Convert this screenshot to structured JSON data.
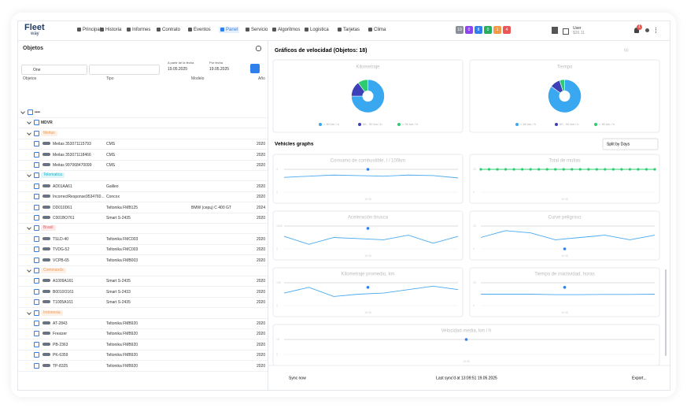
{
  "nav": {
    "logo": "Fleet",
    "logo_sub": "way",
    "items": [
      "Principal",
      "Historia",
      "Informes",
      "Contrato",
      "Eventos",
      "Panel",
      "Servicio",
      "Algoritmos",
      "Logistica",
      "Tarjetas",
      "Clima"
    ],
    "active": 5,
    "badges": [
      {
        "label": "19",
        "color": "#8a8f99"
      },
      {
        "label": "0",
        "color": "#8e44ec"
      },
      {
        "label": "8",
        "color": "#2f80ed"
      },
      {
        "label": "0",
        "color": "#27ae60"
      },
      {
        "label": "1",
        "color": "#f2994a"
      },
      {
        "label": "4",
        "color": "#eb5757"
      }
    ],
    "user": "User",
    "balance": "$26.11",
    "notifications": "1"
  },
  "left": {
    "title": "Objetos",
    "filter": "One",
    "date_from_label": "A partir de la fecha",
    "date_from": "19.05.2025",
    "date_to_label": "Por fecha",
    "date_to": "19.05.2025",
    "columns": [
      "Objetos",
      "Tipo",
      "Modelo",
      "Año"
    ],
    "rows": [
      {
        "group": "••••",
        "level": 0
      },
      {
        "group": "MDVR",
        "level": 1
      },
      {
        "tag": "Meitas",
        "color": "#f2994a"
      },
      {
        "name": "Meitas 353071115793",
        "type": "CMS",
        "year": 2020
      },
      {
        "name": "Meitas 353071118466",
        "type": "CMS",
        "year": 2020
      },
      {
        "name": "Meitas 997068470099",
        "type": "CMS",
        "year": 2020
      },
      {
        "tag": "Telematica",
        "color": "#17b6c9"
      },
      {
        "name": "AD01AA61",
        "type": "Galileo",
        "year": 2020
      },
      {
        "name": "IncorrectResponse9534760...",
        "type": "Concox",
        "year": 2020
      },
      {
        "name": "DD010D61",
        "type": "Teltonika FMB125",
        "model": "BMW (серц) C 400 GT",
        "year": 2024
      },
      {
        "name": "C001BO761",
        "type": "Smart S-2435",
        "year": 2020
      },
      {
        "tag": "Brasil",
        "color": "#eb5757"
      },
      {
        "name": "TSLD-40",
        "type": "Teltonika FMC003",
        "year": 2020
      },
      {
        "name": "TVDG-52",
        "type": "Teltonika FMC003",
        "year": 2020
      },
      {
        "name": "VCPB-65",
        "type": "Teltonika FMB003",
        "year": 2020
      },
      {
        "tag": "Commands",
        "color": "#f2994a"
      },
      {
        "name": "A1009A161",
        "type": "Smart S-2435",
        "year": 2020
      },
      {
        "name": "B0010O161",
        "type": "Smart S-2433",
        "year": 2020
      },
      {
        "name": "T1005A161",
        "type": "Smart S-2435",
        "year": 2020
      },
      {
        "tag": "Indonesia",
        "color": "#f2994a"
      },
      {
        "name": "AT-2843",
        "type": "Teltonika FMB920",
        "year": 2020
      },
      {
        "name": "Fresizer",
        "type": "Teltonika FMB920",
        "year": 2020
      },
      {
        "name": "PB-2363",
        "type": "Teltonika FMB920",
        "year": 2020
      },
      {
        "name": "PK-6359",
        "type": "Teltonika FMB920",
        "year": 2020
      },
      {
        "name": "TP-8325",
        "type": "Teltonika FMB920",
        "year": 2020
      }
    ]
  },
  "right": {
    "title": "Gráficos de velocidad (Objetos: 18)",
    "interval": "60",
    "pie_legend": [
      {
        "name": "< 60 km / h",
        "color": "#3aa8f0"
      },
      {
        "name": "60 - 90 km / h",
        "color": "#3c3fb8"
      },
      {
        "name": "> 90 km / h",
        "color": "#2ecc71"
      }
    ],
    "pies": [
      {
        "title": "Kilometraje",
        "values": [
          75,
          15,
          10
        ]
      },
      {
        "title": "Tiempo",
        "values": [
          85,
          10,
          5
        ]
      }
    ],
    "graphs_title": "Vehicles graphs",
    "split": "Split by Days",
    "x_label": "19.05",
    "graphs": [
      {
        "title": "Consumo de combustible, l / 100km",
        "ylim": [
          0,
          4
        ],
        "yticks": [
          0,
          4
        ],
        "values": [
          2.6,
          2.8,
          3.0,
          2.9,
          2.8,
          3.0,
          2.9,
          2.5
        ],
        "highlight": 4,
        "color": "#49a9f0"
      },
      {
        "title": "Total de multas",
        "ylim": [
          0,
          10
        ],
        "yticks": [
          0,
          10
        ],
        "values": [
          10,
          10,
          10,
          10,
          10,
          10,
          10,
          10,
          10,
          10,
          10,
          10,
          10,
          10,
          10,
          10,
          10,
          10,
          10,
          10,
          10,
          10
        ],
        "color": "#2ecc71",
        "markers": true
      },
      {
        "title": "Aceleración brusca",
        "ylim": [
          0,
          1000
        ],
        "yticks": [
          0,
          1000
        ],
        "values": [
          550,
          200,
          500,
          450,
          400,
          600,
          250,
          550
        ],
        "highlight": 900,
        "color": "#49a9f0"
      },
      {
        "title": "Curve peligroso",
        "ylim": [
          0,
          10
        ],
        "yticks": [
          0,
          10
        ],
        "values": [
          5,
          8,
          7,
          4,
          5,
          6,
          4,
          6
        ],
        "highlight": 0,
        "color": "#49a9f0"
      },
      {
        "title": "Kilometraje promedio, km",
        "ylim": [
          0,
          100
        ],
        "yticks": [
          0,
          100
        ],
        "values": [
          55,
          80,
          40,
          50,
          55,
          70,
          85,
          70
        ],
        "highlight": 80,
        "color": "#49a9f0"
      },
      {
        "title": "Tiempo de inactividad, horas",
        "ylim": [
          0,
          10
        ],
        "yticks": [
          0,
          10
        ],
        "values": [
          5,
          5,
          5,
          4.8,
          4.8,
          4.9,
          4.9,
          5
        ],
        "highlight": 8,
        "color": "#49a9f0"
      },
      {
        "title": "Velocidad media, km / h",
        "ylim": [
          0,
          10
        ],
        "yticks": [
          0,
          10
        ],
        "values": [],
        "highlight": 10,
        "color": "#49a9f0"
      }
    ]
  },
  "footer": {
    "sync": "Sync now",
    "last_sync": "Last sync'd at 13:09:51 19.05.2025",
    "export": "Export..."
  }
}
